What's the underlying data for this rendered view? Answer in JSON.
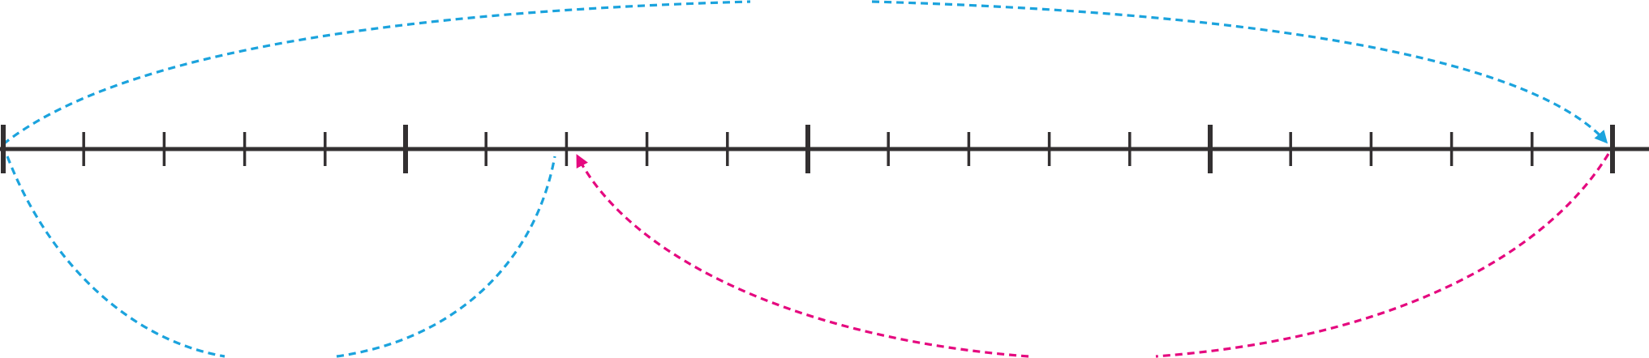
{
  "diagram": {
    "type": "number-line-jumps",
    "line_color": "#333031",
    "jump_colors": {
      "blue": "#1ba3dd",
      "pink": "#e5097f"
    },
    "number_line": {
      "major_tick_count": 5,
      "minor_ticks_between_majors": 4,
      "total_tick_count": 21,
      "extends_right": true
    },
    "jumps": [
      {
        "name": "top-jump",
        "color": "blue",
        "from_tick": 0,
        "to_tick": 20,
        "side": "above",
        "label": "",
        "arrow_at": "end"
      },
      {
        "name": "lower-left-jump",
        "color": "blue",
        "from_tick": 0,
        "to_tick": 7,
        "side": "below",
        "label": "",
        "arrow_at": "none"
      },
      {
        "name": "lower-right-jump",
        "color": "pink",
        "from_tick": 20,
        "to_tick": 7,
        "side": "below",
        "label": "",
        "arrow_at": "end"
      }
    ]
  }
}
